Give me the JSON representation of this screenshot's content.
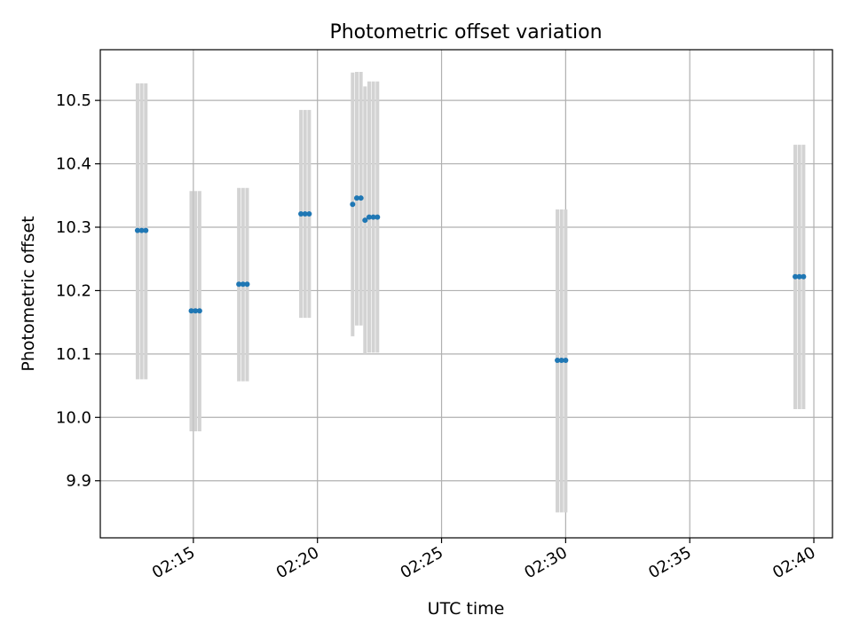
{
  "chart_data": {
    "type": "scatter",
    "title": "Photometric offset variation",
    "xlabel": "UTC time",
    "ylabel": "Photometric offset",
    "x_ticks": [
      "02:15",
      "02:20",
      "02:25",
      "02:30",
      "02:35",
      "02:40"
    ],
    "y_ticks": [
      "9.9",
      "10.0",
      "10.1",
      "10.2",
      "10.3",
      "10.4",
      "10.5"
    ],
    "xlim": [
      "02:11:15",
      "02:40:45"
    ],
    "ylim": [
      9.81,
      10.58
    ],
    "grid": true,
    "colors": {
      "points": "#1f77b4",
      "errorbars": "#d3d3d3",
      "grid": "#b0b0b0"
    },
    "points": [
      {
        "x": "02:12:45",
        "y": 10.295,
        "ylow": 10.06,
        "yhigh": 10.527
      },
      {
        "x": "02:12:55",
        "y": 10.295,
        "ylow": 10.06,
        "yhigh": 10.527
      },
      {
        "x": "02:13:05",
        "y": 10.295,
        "ylow": 10.06,
        "yhigh": 10.527
      },
      {
        "x": "02:14:55",
        "y": 10.168,
        "ylow": 9.978,
        "yhigh": 10.357
      },
      {
        "x": "02:15:05",
        "y": 10.168,
        "ylow": 9.978,
        "yhigh": 10.357
      },
      {
        "x": "02:15:15",
        "y": 10.168,
        "ylow": 9.978,
        "yhigh": 10.357
      },
      {
        "x": "02:16:50",
        "y": 10.21,
        "ylow": 10.057,
        "yhigh": 10.362
      },
      {
        "x": "02:17:00",
        "y": 10.21,
        "ylow": 10.057,
        "yhigh": 10.362
      },
      {
        "x": "02:17:10",
        "y": 10.21,
        "ylow": 10.057,
        "yhigh": 10.362
      },
      {
        "x": "02:19:20",
        "y": 10.321,
        "ylow": 10.157,
        "yhigh": 10.485
      },
      {
        "x": "02:19:30",
        "y": 10.321,
        "ylow": 10.157,
        "yhigh": 10.485
      },
      {
        "x": "02:19:40",
        "y": 10.321,
        "ylow": 10.157,
        "yhigh": 10.485
      },
      {
        "x": "02:21:25",
        "y": 10.336,
        "ylow": 10.128,
        "yhigh": 10.544
      },
      {
        "x": "02:21:35",
        "y": 10.346,
        "ylow": 10.145,
        "yhigh": 10.545
      },
      {
        "x": "02:21:45",
        "y": 10.346,
        "ylow": 10.145,
        "yhigh": 10.545
      },
      {
        "x": "02:21:55",
        "y": 10.311,
        "ylow": 10.1,
        "yhigh": 10.522
      },
      {
        "x": "02:22:05",
        "y": 10.316,
        "ylow": 10.102,
        "yhigh": 10.53
      },
      {
        "x": "02:22:15",
        "y": 10.316,
        "ylow": 10.102,
        "yhigh": 10.53
      },
      {
        "x": "02:22:25",
        "y": 10.316,
        "ylow": 10.102,
        "yhigh": 10.53
      },
      {
        "x": "02:29:40",
        "y": 10.09,
        "ylow": 9.85,
        "yhigh": 10.328
      },
      {
        "x": "02:29:50",
        "y": 10.09,
        "ylow": 9.85,
        "yhigh": 10.328
      },
      {
        "x": "02:30:00",
        "y": 10.09,
        "ylow": 9.85,
        "yhigh": 10.328
      },
      {
        "x": "02:39:15",
        "y": 10.222,
        "ylow": 10.013,
        "yhigh": 10.43
      },
      {
        "x": "02:39:25",
        "y": 10.222,
        "ylow": 10.013,
        "yhigh": 10.43
      },
      {
        "x": "02:39:35",
        "y": 10.222,
        "ylow": 10.013,
        "yhigh": 10.43
      }
    ]
  }
}
